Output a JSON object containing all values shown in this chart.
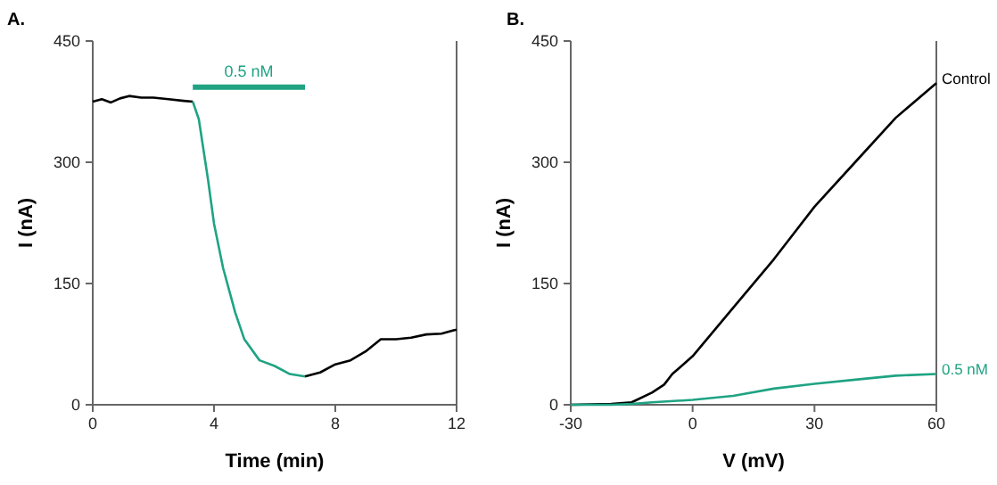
{
  "chart_data": [
    {
      "type": "line",
      "title": "A.",
      "xlabel": "Time (min)",
      "ylabel": "I (nA)",
      "xlim": [
        0,
        12
      ],
      "xticks": [
        0,
        4,
        8,
        12
      ],
      "ylim": [
        0,
        450
      ],
      "yticks": [
        0,
        150,
        300,
        450
      ],
      "grid": false,
      "marker": "none",
      "annotations": [
        {
          "text": "0.5 nM",
          "x": 5.15,
          "y": 393
        }
      ],
      "series": [
        {
          "color": "#1fa383",
          "x": [
            3.3,
            7.0
          ],
          "values": [
            393,
            393
          ]
        },
        {
          "color": "#000000",
          "x": [
            0,
            0.3,
            0.6,
            0.9,
            1.2,
            1.6,
            2,
            2.5,
            3,
            3.3
          ],
          "values": [
            375,
            378,
            374,
            379,
            382,
            380,
            380,
            378,
            376,
            375
          ]
        },
        {
          "color": "#1fa383",
          "x": [
            3.3,
            3.5,
            3.8,
            4.0,
            4.3,
            4.7,
            5.0,
            5.5,
            6.0,
            6.5,
            7.0
          ],
          "values": [
            375,
            353,
            279,
            224,
            169,
            114,
            81,
            55,
            48,
            38,
            35
          ]
        },
        {
          "color": "#000000",
          "x": [
            7.0,
            7.5,
            8,
            8.5,
            9,
            9.5,
            10,
            10.5,
            11,
            11.5,
            12
          ],
          "values": [
            35,
            40,
            50,
            55,
            66,
            81,
            81,
            83,
            87,
            88,
            93
          ]
        }
      ]
    },
    {
      "type": "line",
      "title": "B.",
      "xlabel": "V (mV)",
      "ylabel": "I (nA)",
      "xlim": [
        -30,
        60
      ],
      "xticks": [
        -30,
        0,
        30,
        60
      ],
      "ylim": [
        0,
        450
      ],
      "yticks": [
        0,
        150,
        300,
        450
      ],
      "grid": false,
      "marker": "none",
      "series": [
        {
          "name": "Control",
          "color": "#000000",
          "x": [
            -30,
            -20,
            -15,
            -10,
            -7,
            -5,
            0,
            10,
            20,
            30,
            40,
            50,
            60
          ],
          "values": [
            0,
            1,
            3,
            15,
            25,
            38,
            60,
            120,
            180,
            245,
            300,
            355,
            398
          ]
        },
        {
          "name": "0.5 nM",
          "color": "#1fa383",
          "x": [
            -30,
            -20,
            -15,
            -10,
            0,
            10,
            20,
            30,
            40,
            50,
            60
          ],
          "values": [
            0,
            0,
            1,
            3,
            6,
            11,
            20,
            26,
            31,
            36,
            38
          ]
        }
      ]
    }
  ]
}
